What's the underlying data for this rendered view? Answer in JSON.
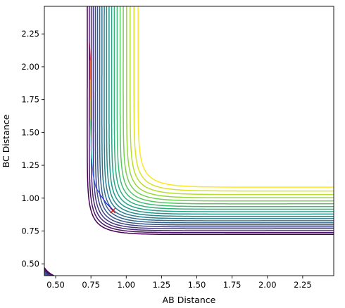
{
  "chart_data": {
    "type": "contour",
    "title": "",
    "xlabel": "AB Distance",
    "ylabel": "BC Distance",
    "xlim": [
      0.42,
      2.47
    ],
    "ylim": [
      0.41,
      2.46
    ],
    "xticks": [
      "0.50",
      "0.75",
      "1.00",
      "1.25",
      "1.50",
      "1.75",
      "2.00",
      "2.25"
    ],
    "yticks": [
      "0.50",
      "0.75",
      "1.00",
      "1.25",
      "1.50",
      "1.75",
      "2.00",
      "2.25"
    ],
    "xtick_values": [
      0.5,
      0.75,
      1.0,
      1.25,
      1.5,
      1.75,
      2.0,
      2.25
    ],
    "ytick_values": [
      0.5,
      0.75,
      1.0,
      1.25,
      1.5,
      1.75,
      2.0,
      2.25
    ],
    "colormap": "viridis",
    "contour_levels": 20,
    "grid": false,
    "legend": "none",
    "trajectory": {
      "color_start": "#ff0000",
      "color_end": "#0000ff",
      "points": [
        [
          0.74,
          2.18
        ],
        [
          0.745,
          2.05
        ],
        [
          0.745,
          1.9
        ],
        [
          0.745,
          1.75
        ],
        [
          0.745,
          1.6
        ],
        [
          0.75,
          1.45
        ],
        [
          0.755,
          1.3
        ],
        [
          0.765,
          1.18
        ],
        [
          0.785,
          1.08
        ],
        [
          0.82,
          1.02
        ],
        [
          0.86,
          0.96
        ],
        [
          0.905,
          0.91
        ]
      ]
    },
    "marker": {
      "x": 0.905,
      "y": 0.905,
      "symbol": "x",
      "color": "#ff0000"
    }
  }
}
